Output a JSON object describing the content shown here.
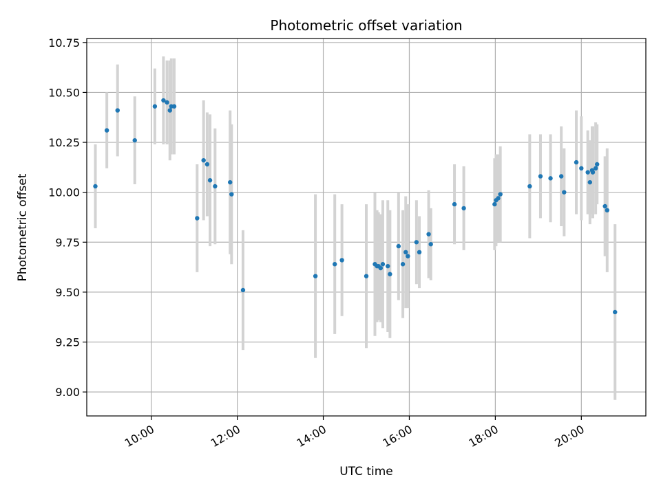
{
  "chart_data": {
    "type": "scatter",
    "title": "Photometric offset variation",
    "xlabel": "UTC time",
    "ylabel": "Photometric offset",
    "xlim": [
      "08:30",
      "21:30"
    ],
    "ylim": [
      8.88,
      10.77
    ],
    "x_ticks": [
      "10:00",
      "12:00",
      "14:00",
      "16:00",
      "18:00",
      "20:00"
    ],
    "y_ticks": [
      "9.00",
      "9.25",
      "9.50",
      "9.75",
      "10.00",
      "10.25",
      "10.50",
      "10.75"
    ],
    "grid": true,
    "colors": {
      "points": "#1f77b4",
      "error_bars": "#d3d3d3",
      "grid": "#b0b0b0"
    },
    "series": [
      {
        "x": [
          "08:42",
          "08:58",
          "09:13",
          "09:37",
          "10:05",
          "10:17",
          "10:22",
          "10:26",
          "10:28",
          "10:32",
          "11:04",
          "11:13",
          "11:18",
          "11:22",
          "11:29",
          "11:50",
          "11:52",
          "12:08",
          "13:49",
          "14:16",
          "14:26",
          "15:00",
          "15:12",
          "15:15",
          "15:17",
          "15:20",
          "15:23",
          "15:30",
          "15:33",
          "15:45",
          "15:51",
          "15:55",
          "15:58",
          "16:10",
          "16:14",
          "16:27",
          "16:30",
          "17:03",
          "17:16",
          "17:59",
          "18:01",
          "18:04",
          "18:07",
          "18:48",
          "19:03",
          "19:17",
          "19:32",
          "19:36",
          "19:53",
          "20:00",
          "20:09",
          "20:12",
          "20:15",
          "20:16",
          "20:20",
          "20:22",
          "20:33",
          "20:36",
          "20:47"
        ],
        "y": [
          10.03,
          10.31,
          10.41,
          10.26,
          10.43,
          10.46,
          10.45,
          10.41,
          10.43,
          10.43,
          9.87,
          10.16,
          10.14,
          10.06,
          10.03,
          10.05,
          9.99,
          9.51,
          9.58,
          9.64,
          9.66,
          9.58,
          9.64,
          9.63,
          9.63,
          9.62,
          9.64,
          9.63,
          9.59,
          9.73,
          9.64,
          9.7,
          9.68,
          9.75,
          9.7,
          9.79,
          9.74,
          9.94,
          9.92,
          9.94,
          9.96,
          9.97,
          9.99,
          10.03,
          10.08,
          10.07,
          10.08,
          10.0,
          10.15,
          10.12,
          10.1,
          10.05,
          10.11,
          10.1,
          10.12,
          10.14,
          9.93,
          9.91,
          9.4
        ],
        "err": [
          0.21,
          0.19,
          0.23,
          0.22,
          0.19,
          0.22,
          0.21,
          0.25,
          0.24,
          0.24,
          0.27,
          0.3,
          0.26,
          0.33,
          0.29,
          0.36,
          0.35,
          0.3,
          0.41,
          0.35,
          0.28,
          0.36,
          0.36,
          0.28,
          0.27,
          0.27,
          0.32,
          0.33,
          0.32,
          0.27,
          0.27,
          0.28,
          0.26,
          0.21,
          0.18,
          0.22,
          0.18,
          0.2,
          0.21,
          0.23,
          0.23,
          0.22,
          0.24,
          0.26,
          0.21,
          0.22,
          0.25,
          0.22,
          0.26,
          0.26,
          0.21,
          0.21,
          0.22,
          0.23,
          0.23,
          0.2,
          0.25,
          0.31,
          0.44
        ]
      }
    ]
  }
}
